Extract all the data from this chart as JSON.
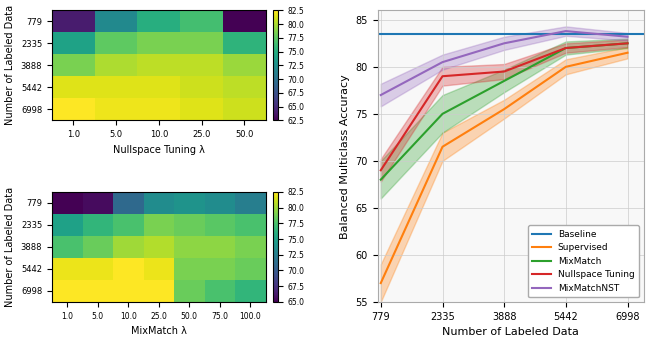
{
  "nst_lambda": [
    1.0,
    5.0,
    10.0,
    25.0,
    50.0
  ],
  "mm_lambda": [
    1.0,
    5.0,
    10.0,
    25.0,
    50.0,
    75.0,
    100.0
  ],
  "labeled_data": [
    779,
    2335,
    3888,
    5442,
    6998
  ],
  "nst_heatmap": [
    [
      64.0,
      72.0,
      75.0,
      76.5,
      62.5
    ],
    [
      74.0,
      77.5,
      78.5,
      78.5,
      75.5
    ],
    [
      78.5,
      80.0,
      80.5,
      80.5,
      79.5
    ],
    [
      81.5,
      81.5,
      81.5,
      81.0,
      80.5
    ],
    [
      82.5,
      82.0,
      82.0,
      81.5,
      81.0
    ]
  ],
  "mm_heatmap": [
    [
      64.5,
      65.5,
      71.0,
      73.5,
      74.0,
      73.5,
      72.5
    ],
    [
      75.0,
      76.5,
      77.5,
      79.0,
      78.5,
      78.0,
      77.5
    ],
    [
      77.5,
      78.5,
      80.0,
      80.5,
      79.5,
      79.5,
      79.0
    ],
    [
      82.0,
      82.0,
      82.5,
      82.0,
      79.0,
      79.0,
      78.5
    ],
    [
      82.5,
      82.5,
      82.5,
      82.5,
      78.5,
      77.5,
      76.5
    ]
  ],
  "colorbar_min": 62.5,
  "colorbar_max": 82.5,
  "colorbar_ticks_nst": [
    62.5,
    65.0,
    67.5,
    70.0,
    72.5,
    75.0,
    77.5,
    80.0,
    82.5
  ],
  "colorbar_min_mm": 65.0,
  "colorbar_max_mm": 82.5,
  "colorbar_ticks_mm": [
    65.0,
    67.5,
    70.0,
    72.5,
    75.0,
    77.5,
    80.0,
    82.5
  ],
  "line_x": [
    779,
    2335,
    3888,
    5442,
    6998
  ],
  "baseline_y": 83.5,
  "supervised_mean": [
    57.0,
    71.5,
    75.5,
    80.0,
    81.5
  ],
  "supervised_sem": [
    2.0,
    1.5,
    1.0,
    0.8,
    0.6
  ],
  "mixmatch_mean": [
    68.0,
    75.0,
    78.5,
    82.0,
    82.5
  ],
  "mixmatch_sem": [
    2.0,
    2.0,
    1.2,
    0.7,
    0.5
  ],
  "nst_mean": [
    69.0,
    79.0,
    79.5,
    82.0,
    82.5
  ],
  "nst_sem": [
    1.2,
    1.0,
    0.8,
    0.5,
    0.4
  ],
  "mixmatchnst_mean": [
    77.0,
    80.5,
    82.5,
    83.8,
    83.2
  ],
  "mixmatchnst_sem": [
    1.2,
    0.8,
    0.7,
    0.5,
    0.4
  ],
  "colors": {
    "baseline": "#1f77b4",
    "supervised": "#ff7f0e",
    "mixmatch": "#2ca02c",
    "nst": "#d62728",
    "mixmatchnst": "#9467bd"
  },
  "ylabel_line": "Balanced Multiclass Accuracy",
  "xlabel_line": "Number of Labeled Data",
  "ylabel_heatmap": "Number of Labeled Data",
  "xlabel_nst": "Nullspace Tuning λ",
  "xlabel_mm": "MixMatch λ",
  "line_ylim": [
    55,
    86
  ],
  "line_yticks": [
    55,
    60,
    65,
    70,
    75,
    80,
    85
  ]
}
